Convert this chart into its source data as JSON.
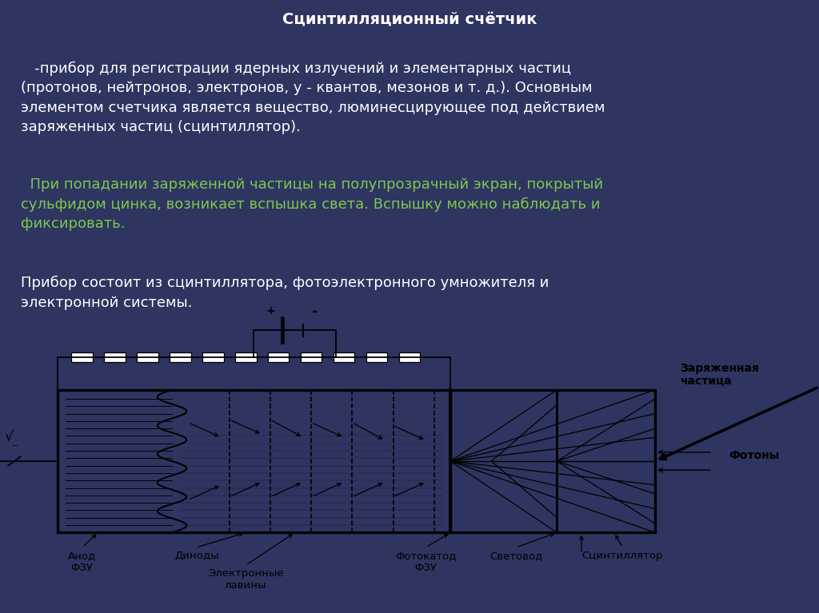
{
  "bg_color": "#2e3560",
  "title": "Сцинтилляционный счётчик",
  "title_color": "#ffffff",
  "title_fontsize": 14,
  "para1_color": "#ffffff",
  "para1_fontsize": 13,
  "para1_text": "   -прибор для регистрации ядерных излучений и элементарных частиц\n(протонов, нейтронов, электронов, у - квантов, мезонов и т. д.). Основным\nэлементом счетчика является вещество, люминесцирующее под действием\nзаряженных частиц (сцинтиллятор).",
  "para2_color": "#7ec850",
  "para2_fontsize": 13,
  "para2_text": "  При попадании заряженной частицы на полупрозрачный экран, покрытый\nсульфидом цинка, возникает вспышка света. Вспышку можно наблюдать и\nфиксировать.",
  "para3_color": "#ffffff",
  "para3_fontsize": 13,
  "para3_text": "Прибор состоит из сцинтиллятора, фотоэлектронного умножителя и\nэлектронной системы.",
  "diagram_label_fontsize": 9.5
}
